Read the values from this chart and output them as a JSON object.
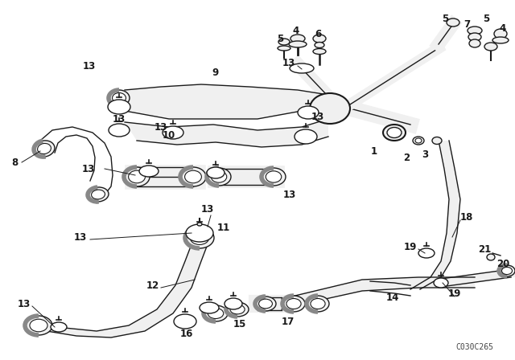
{
  "background_color": "#ffffff",
  "line_color": "#1a1a1a",
  "diagram_code": "C030C265",
  "fig_width": 6.4,
  "fig_height": 4.48,
  "dpi": 100,
  "lw": 1.0,
  "part_fill": "#f0f0f0",
  "dark_fill": "#888888"
}
